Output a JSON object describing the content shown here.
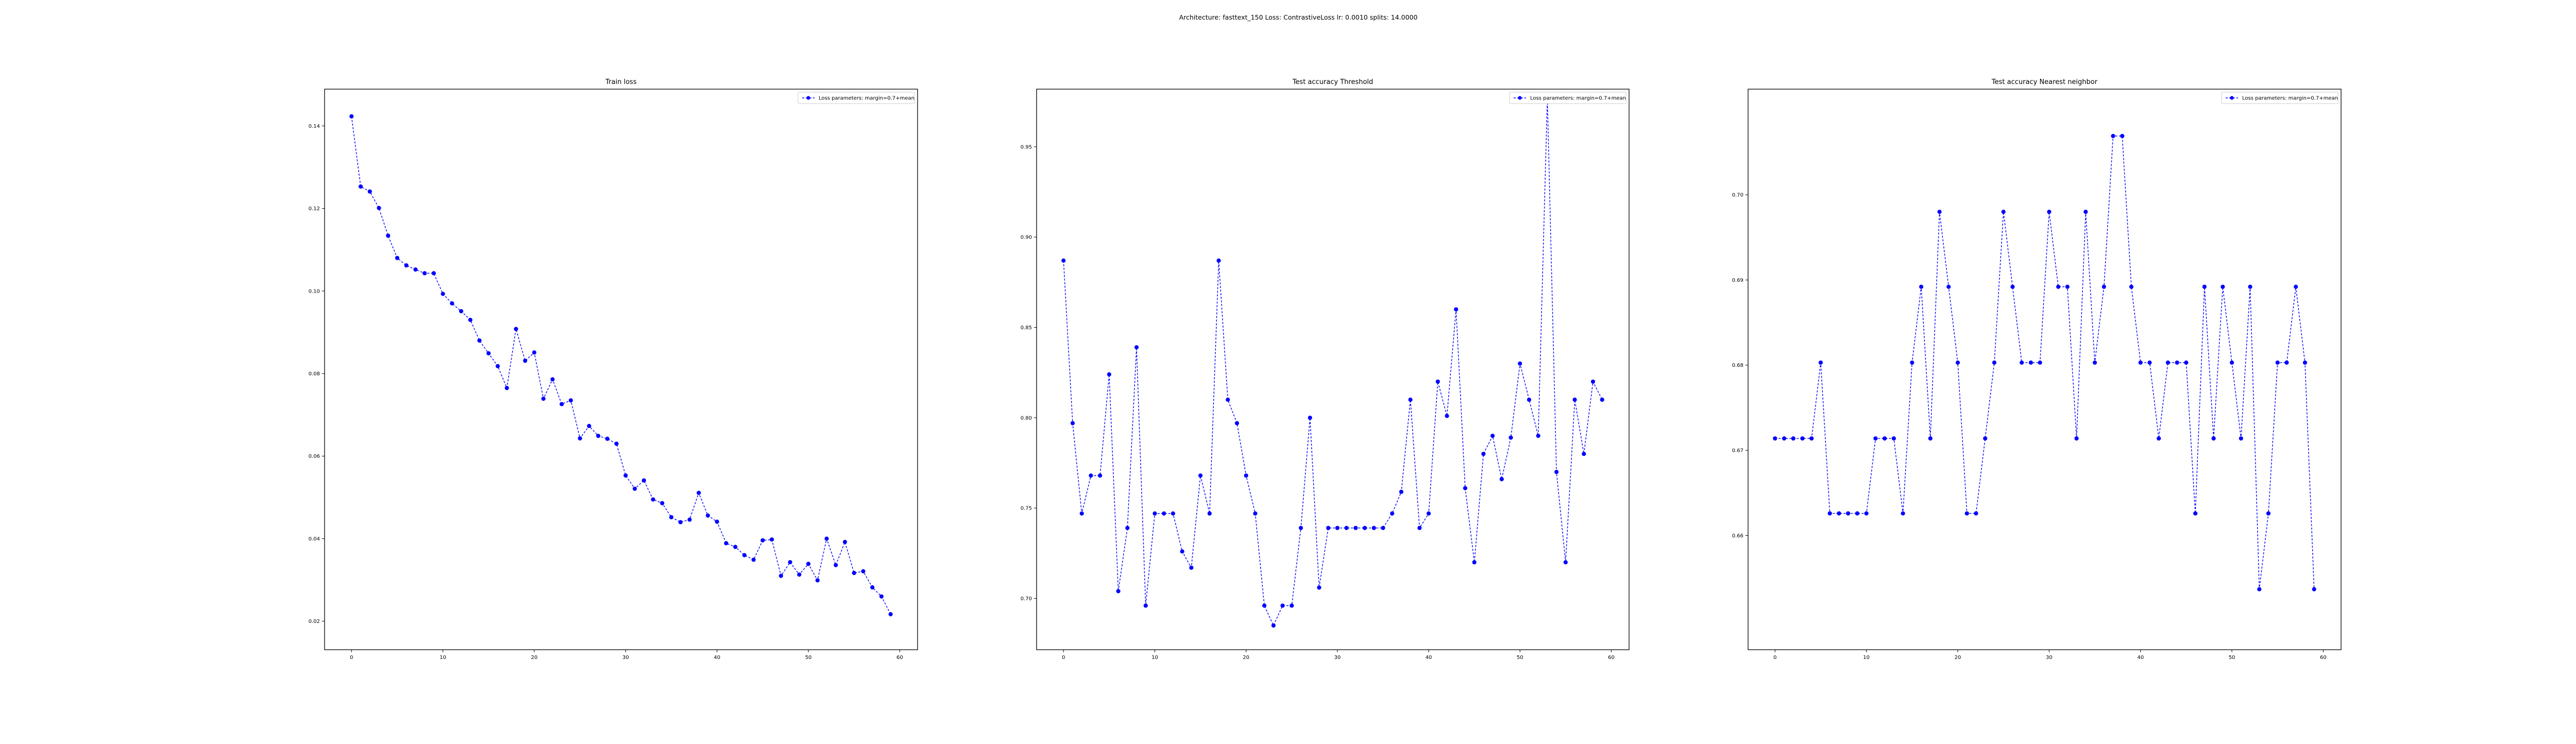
{
  "figure": {
    "suptitle": "Architecture: fasttext_150 Loss: ContrastiveLoss lr: 0.0010 splits: 14.0000"
  },
  "colors": {
    "series": "#0000ff",
    "axes": "#000000",
    "background": "#ffffff"
  },
  "chart_data": [
    {
      "type": "line",
      "title": "Train loss",
      "xlabel": "",
      "ylabel": "",
      "xlim": [
        -2.95,
        61.95
      ],
      "ylim": [
        0.0131,
        0.1489
      ],
      "xticks": [
        0,
        10,
        20,
        30,
        40,
        50,
        60
      ],
      "yticks": [
        0.02,
        0.04,
        0.06,
        0.08,
        0.1,
        0.12,
        0.14
      ],
      "ytick_labels": [
        "0.02",
        "0.04",
        "0.06",
        "0.08",
        "0.10",
        "0.12",
        "0.14"
      ],
      "grid": false,
      "legend": {
        "placement": "top-right",
        "entries": [
          "Loss parameters: margin=0.7+mean"
        ]
      },
      "series": [
        {
          "name": "Loss parameters: margin=0.7+mean",
          "style": "dashed line with circle markers",
          "x": [
            0,
            1,
            2,
            3,
            4,
            5,
            6,
            7,
            8,
            9,
            10,
            11,
            12,
            13,
            14,
            15,
            16,
            17,
            18,
            19,
            20,
            21,
            22,
            23,
            24,
            25,
            26,
            27,
            28,
            29,
            30,
            31,
            32,
            33,
            34,
            35,
            36,
            37,
            38,
            39,
            40,
            41,
            42,
            43,
            44,
            45,
            46,
            47,
            48,
            49,
            50,
            51,
            52,
            53,
            54,
            55,
            56,
            57,
            58,
            59
          ],
          "values": [
            0.1423,
            0.1253,
            0.1241,
            0.1201,
            0.1134,
            0.108,
            0.1062,
            0.1052,
            0.1043,
            0.1043,
            0.0993,
            0.097,
            0.0951,
            0.093,
            0.088,
            0.0849,
            0.0818,
            0.0765,
            0.0908,
            0.0831,
            0.0851,
            0.0739,
            0.0786,
            0.0726,
            0.0735,
            0.0643,
            0.0673,
            0.0649,
            0.0642,
            0.063,
            0.0553,
            0.0521,
            0.0541,
            0.0495,
            0.0486,
            0.0452,
            0.044,
            0.0446,
            0.0511,
            0.0456,
            0.0441,
            0.0389,
            0.038,
            0.036,
            0.0349,
            0.0396,
            0.0398,
            0.031,
            0.0343,
            0.0313,
            0.0339,
            0.0299,
            0.04,
            0.0336,
            0.0392,
            0.0317,
            0.0321,
            0.0282,
            0.026,
            0.0217
          ]
        }
      ]
    },
    {
      "type": "line",
      "title": "Test accuracy Threshold",
      "xlabel": "",
      "ylabel": "",
      "xlim": [
        -2.95,
        61.95
      ],
      "ylim": [
        0.6716,
        0.9819
      ],
      "xticks": [
        0,
        10,
        20,
        30,
        40,
        50,
        60
      ],
      "yticks": [
        0.7,
        0.75,
        0.8,
        0.85,
        0.9,
        0.95
      ],
      "ytick_labels": [
        "0.70",
        "0.75",
        "0.80",
        "0.85",
        "0.90",
        "0.95"
      ],
      "grid": false,
      "legend": {
        "placement": "top-right",
        "entries": [
          "Loss parameters: margin=0.7+mean"
        ]
      },
      "series": [
        {
          "name": "Loss parameters: margin=0.7+mean",
          "style": "dashed line with circle markers",
          "x": [
            0,
            1,
            2,
            3,
            4,
            5,
            6,
            7,
            8,
            9,
            10,
            11,
            12,
            13,
            14,
            15,
            16,
            17,
            18,
            19,
            20,
            21,
            22,
            23,
            24,
            25,
            26,
            27,
            28,
            29,
            30,
            31,
            32,
            33,
            34,
            35,
            36,
            37,
            38,
            39,
            40,
            41,
            42,
            43,
            44,
            45,
            46,
            47,
            48,
            49,
            50,
            51,
            52,
            53,
            54,
            55,
            56,
            57,
            58,
            59
          ],
          "values": [
            0.887,
            0.797,
            0.747,
            0.768,
            0.768,
            0.824,
            0.704,
            0.739,
            0.839,
            0.696,
            0.747,
            0.747,
            0.747,
            0.726,
            0.717,
            0.768,
            0.747,
            0.887,
            0.81,
            0.797,
            0.768,
            0.747,
            0.696,
            0.685,
            0.696,
            0.696,
            0.739,
            0.8,
            0.706,
            0.739,
            0.739,
            0.739,
            0.739,
            0.739,
            0.739,
            0.739,
            0.747,
            0.759,
            0.81,
            0.739,
            0.747,
            0.82,
            0.801,
            0.86,
            0.761,
            0.72,
            0.78,
            0.79,
            0.766,
            0.789,
            0.83,
            0.81,
            0.79,
            0.977,
            0.77,
            0.72,
            0.81,
            0.78,
            0.82,
            0.81
          ]
        }
      ]
    },
    {
      "type": "line",
      "title": "Test accuracy Nearest neighbor",
      "xlabel": "",
      "ylabel": "",
      "xlim": [
        -2.95,
        61.95
      ],
      "ylim": [
        0.6466,
        0.7124
      ],
      "xticks": [
        0,
        10,
        20,
        30,
        40,
        50,
        60
      ],
      "yticks": [
        0.66,
        0.67,
        0.68,
        0.69,
        0.7
      ],
      "ytick_labels": [
        "0.66",
        "0.67",
        "0.68",
        "0.69",
        "0.70"
      ],
      "grid": false,
      "legend": {
        "placement": "top-right",
        "entries": [
          "Loss parameters: margin=0.7+mean"
        ]
      },
      "series": [
        {
          "name": "Loss parameters: margin=0.7+mean",
          "style": "dashed line with circle markers",
          "x": [
            0,
            1,
            2,
            3,
            4,
            5,
            6,
            7,
            8,
            9,
            10,
            11,
            12,
            13,
            14,
            15,
            16,
            17,
            18,
            19,
            20,
            21,
            22,
            23,
            24,
            25,
            26,
            27,
            28,
            29,
            30,
            31,
            32,
            33,
            34,
            35,
            36,
            37,
            38,
            39,
            40,
            41,
            42,
            43,
            44,
            45,
            46,
            47,
            48,
            49,
            50,
            51,
            52,
            53,
            54,
            55,
            56,
            57,
            58,
            59
          ],
          "values": [
            0.6714,
            0.6714,
            0.6714,
            0.6714,
            0.6714,
            0.6803,
            0.6626,
            0.6626,
            0.6626,
            0.6626,
            0.6626,
            0.6714,
            0.6714,
            0.6714,
            0.6626,
            0.6803,
            0.6892,
            0.6714,
            0.698,
            0.6892,
            0.6803,
            0.6626,
            0.6626,
            0.6714,
            0.6803,
            0.698,
            0.6892,
            0.6803,
            0.6803,
            0.6803,
            0.698,
            0.6892,
            0.6892,
            0.6714,
            0.698,
            0.6803,
            0.6892,
            0.7069,
            0.7069,
            0.6892,
            0.6803,
            0.6803,
            0.6714,
            0.6803,
            0.6803,
            0.6803,
            0.6626,
            0.6892,
            0.6714,
            0.6892,
            0.6803,
            0.6714,
            0.6892,
            0.6537,
            0.6626,
            0.6803,
            0.6803,
            0.6892,
            0.6803,
            0.6537
          ]
        }
      ]
    }
  ]
}
